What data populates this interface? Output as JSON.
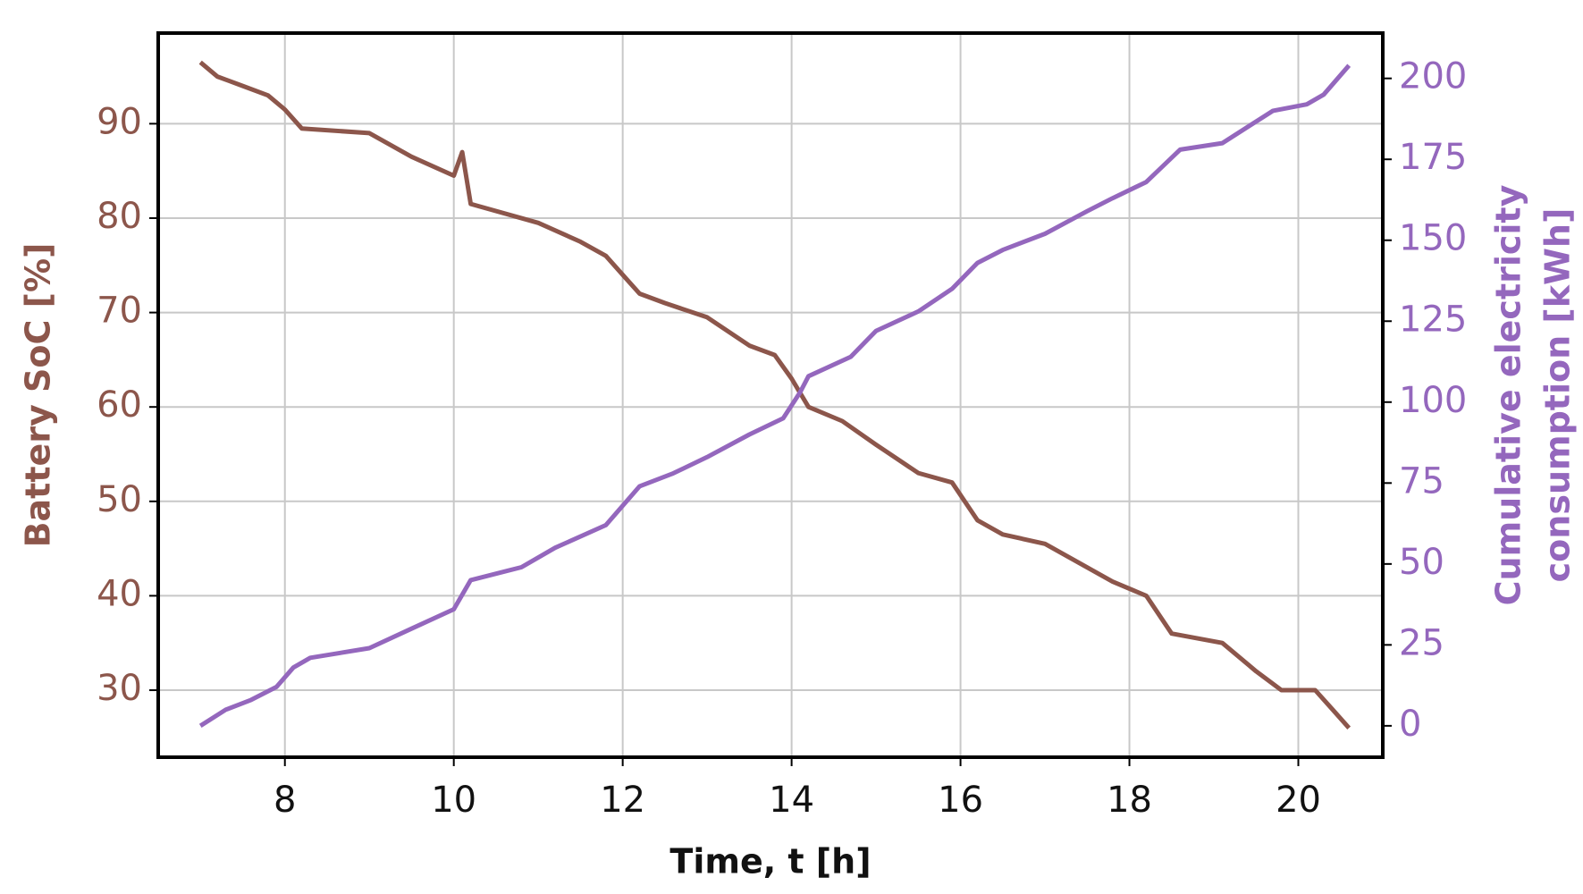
{
  "chart_data": {
    "type": "line",
    "xlabel": "Time, t [h]",
    "ylabel": "Battery SoC [%]",
    "y2label": [
      "Cumulative electricity",
      "consumption [kWh]"
    ],
    "xlim": [
      6.5,
      21.0
    ],
    "xticks": [
      8,
      10,
      12,
      14,
      16,
      18,
      20
    ],
    "ylim": [
      22.9,
      99.6
    ],
    "yticks": [
      30,
      40,
      50,
      60,
      70,
      80,
      90
    ],
    "y2lim": [
      -9.7,
      214
    ],
    "y2ticks": [
      0,
      25,
      50,
      75,
      100,
      125,
      150,
      175,
      200
    ],
    "grid": true,
    "series": [
      {
        "name": "Battery SoC",
        "color": "#8c564b",
        "x": [
          7.0,
          7.2,
          7.5,
          7.8,
          8.0,
          8.2,
          9.0,
          9.5,
          10.0,
          10.1,
          10.2,
          11.0,
          11.5,
          11.8,
          12.0,
          12.2,
          12.5,
          13.0,
          13.5,
          13.8,
          14.0,
          14.2,
          14.6,
          15.0,
          15.5,
          15.9,
          16.2,
          16.5,
          17.0,
          17.5,
          17.8,
          18.2,
          18.5,
          19.1,
          19.5,
          19.8,
          20.2,
          20.4,
          20.6
        ],
        "values": [
          96.5,
          95,
          94,
          93,
          91.5,
          89.5,
          89,
          86.5,
          84.5,
          87,
          81.5,
          79.5,
          77.5,
          76,
          74,
          72,
          71,
          69.5,
          66.5,
          65.5,
          63,
          60,
          58.5,
          56,
          53,
          52,
          48,
          46.5,
          45.5,
          43,
          41.5,
          40,
          36,
          35,
          32,
          30,
          30,
          28,
          26
        ]
      },
      {
        "name": "Cumulative electricity consumption",
        "color": "#9467bd",
        "axis": "y2",
        "x": [
          7.0,
          7.3,
          7.6,
          7.9,
          8.1,
          8.3,
          9.0,
          9.5,
          10.0,
          10.2,
          10.8,
          11.2,
          11.8,
          12.2,
          12.6,
          13.0,
          13.5,
          13.9,
          14.1,
          14.2,
          14.7,
          15.0,
          15.5,
          15.9,
          16.2,
          16.5,
          17.0,
          17.5,
          17.8,
          18.2,
          18.4,
          18.6,
          19.1,
          19.4,
          19.7,
          20.1,
          20.3,
          20.6
        ],
        "values": [
          0,
          5,
          8,
          12,
          18,
          21,
          24,
          30,
          36,
          45,
          49,
          55,
          62,
          74,
          78,
          83,
          90,
          95,
          103,
          108,
          114,
          122,
          128,
          135,
          143,
          147,
          152,
          159,
          163,
          168,
          173,
          178,
          180,
          185,
          190,
          192,
          195,
          204
        ]
      }
    ]
  }
}
